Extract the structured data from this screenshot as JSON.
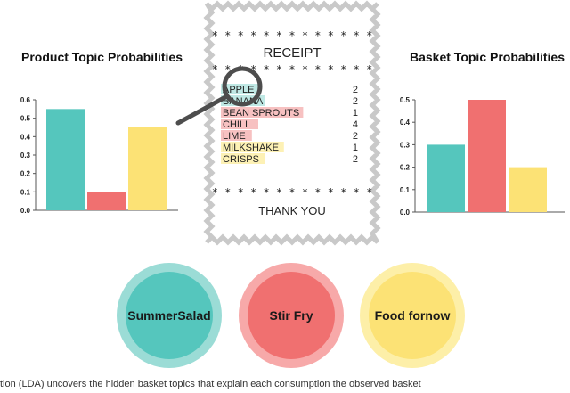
{
  "colors": {
    "teal": "#55c6bd",
    "red": "#f07070",
    "yellow": "#fce275",
    "teal_ring": "#9bdcd6",
    "red_ring": "#f7a9a9",
    "yellow_ring": "#fdefa8"
  },
  "receipt": {
    "stars": "* * * * * * * * * * * * *",
    "title": "RECEIPT",
    "footer": "THANK YOU",
    "items": [
      {
        "name": "APPLE",
        "qty": "2",
        "topic": "teal"
      },
      {
        "name": "BANANA",
        "qty": "2",
        "topic": "teal"
      },
      {
        "name": "BEAN SPROUTS",
        "qty": "1",
        "topic": "red"
      },
      {
        "name": "CHILI",
        "qty": "4",
        "topic": "red"
      },
      {
        "name": "LIME",
        "qty": "2",
        "topic": "red"
      },
      {
        "name": "MILKSHAKE",
        "qty": "1",
        "topic": "yellow"
      },
      {
        "name": "CRISPS",
        "qty": "2",
        "topic": "yellow"
      }
    ]
  },
  "topics": [
    {
      "label_line1": "Summer",
      "label_line2": "Salad",
      "color": "teal"
    },
    {
      "label_line1": "Stir Fry",
      "label_line2": "",
      "color": "red"
    },
    {
      "label_line1": "Food for",
      "label_line2": "now",
      "color": "yellow"
    }
  ],
  "caption": "tion (LDA) uncovers the hidden basket topics that explain each consumption the observed basket",
  "chart_data": [
    {
      "type": "bar",
      "title": "Product Topic Probabilities",
      "categories": [
        "",
        "",
        ""
      ],
      "values": [
        0.55,
        0.1,
        0.45
      ],
      "colors": [
        "#55c6bd",
        "#f07070",
        "#fce275"
      ],
      "ylim": [
        0,
        0.6
      ],
      "yticks": [
        "0.0",
        "0.1",
        "0.2",
        "0.3",
        "0.4",
        "0.5",
        "0.6"
      ]
    },
    {
      "type": "bar",
      "title": "Basket Topic Probabilities",
      "categories": [
        "",
        "",
        ""
      ],
      "values": [
        0.3,
        0.5,
        0.2
      ],
      "colors": [
        "#55c6bd",
        "#f07070",
        "#fce275"
      ],
      "ylim": [
        0,
        0.5
      ],
      "yticks": [
        "0.0",
        "0.1",
        "0.2",
        "0.3",
        "0.4",
        "0.5"
      ]
    }
  ]
}
